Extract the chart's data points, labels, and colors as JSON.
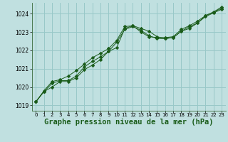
{
  "background_color": "#c0e0e0",
  "grid_color": "#98c8c8",
  "line_color": "#1a5c1a",
  "marker_color": "#1a5c1a",
  "title": "Graphe pression niveau de la mer (hPa)",
  "title_fontsize": 7.5,
  "xlim": [
    -0.5,
    23.5
  ],
  "ylim": [
    1018.7,
    1024.6
  ],
  "yticks": [
    1019,
    1020,
    1021,
    1022,
    1023,
    1024
  ],
  "xticks": [
    0,
    1,
    2,
    3,
    4,
    5,
    6,
    7,
    8,
    9,
    10,
    11,
    12,
    13,
    14,
    15,
    16,
    17,
    18,
    19,
    20,
    21,
    22,
    23
  ],
  "series1": [
    1019.2,
    1019.75,
    1020.0,
    1020.3,
    1020.3,
    1020.5,
    1020.95,
    1021.2,
    1021.5,
    1021.95,
    1022.15,
    1023.2,
    1023.35,
    1023.2,
    1023.05,
    1022.75,
    1022.65,
    1022.7,
    1023.05,
    1023.2,
    1023.5,
    1023.85,
    1024.05,
    1024.25
  ],
  "series2": [
    1019.2,
    1019.75,
    1020.2,
    1020.35,
    1020.35,
    1020.6,
    1021.1,
    1021.4,
    1021.65,
    1021.95,
    1022.45,
    1023.15,
    1023.3,
    1023.1,
    1022.8,
    1022.65,
    1022.65,
    1022.7,
    1023.05,
    1023.3,
    1023.5,
    1023.9,
    1024.1,
    1024.3
  ],
  "series3": [
    1019.2,
    1019.8,
    1020.3,
    1020.4,
    1020.6,
    1020.9,
    1021.25,
    1021.6,
    1021.85,
    1022.1,
    1022.55,
    1023.3,
    1023.35,
    1023.0,
    1022.75,
    1022.7,
    1022.7,
    1022.75,
    1023.15,
    1023.35,
    1023.6,
    1023.9,
    1024.1,
    1024.38
  ]
}
